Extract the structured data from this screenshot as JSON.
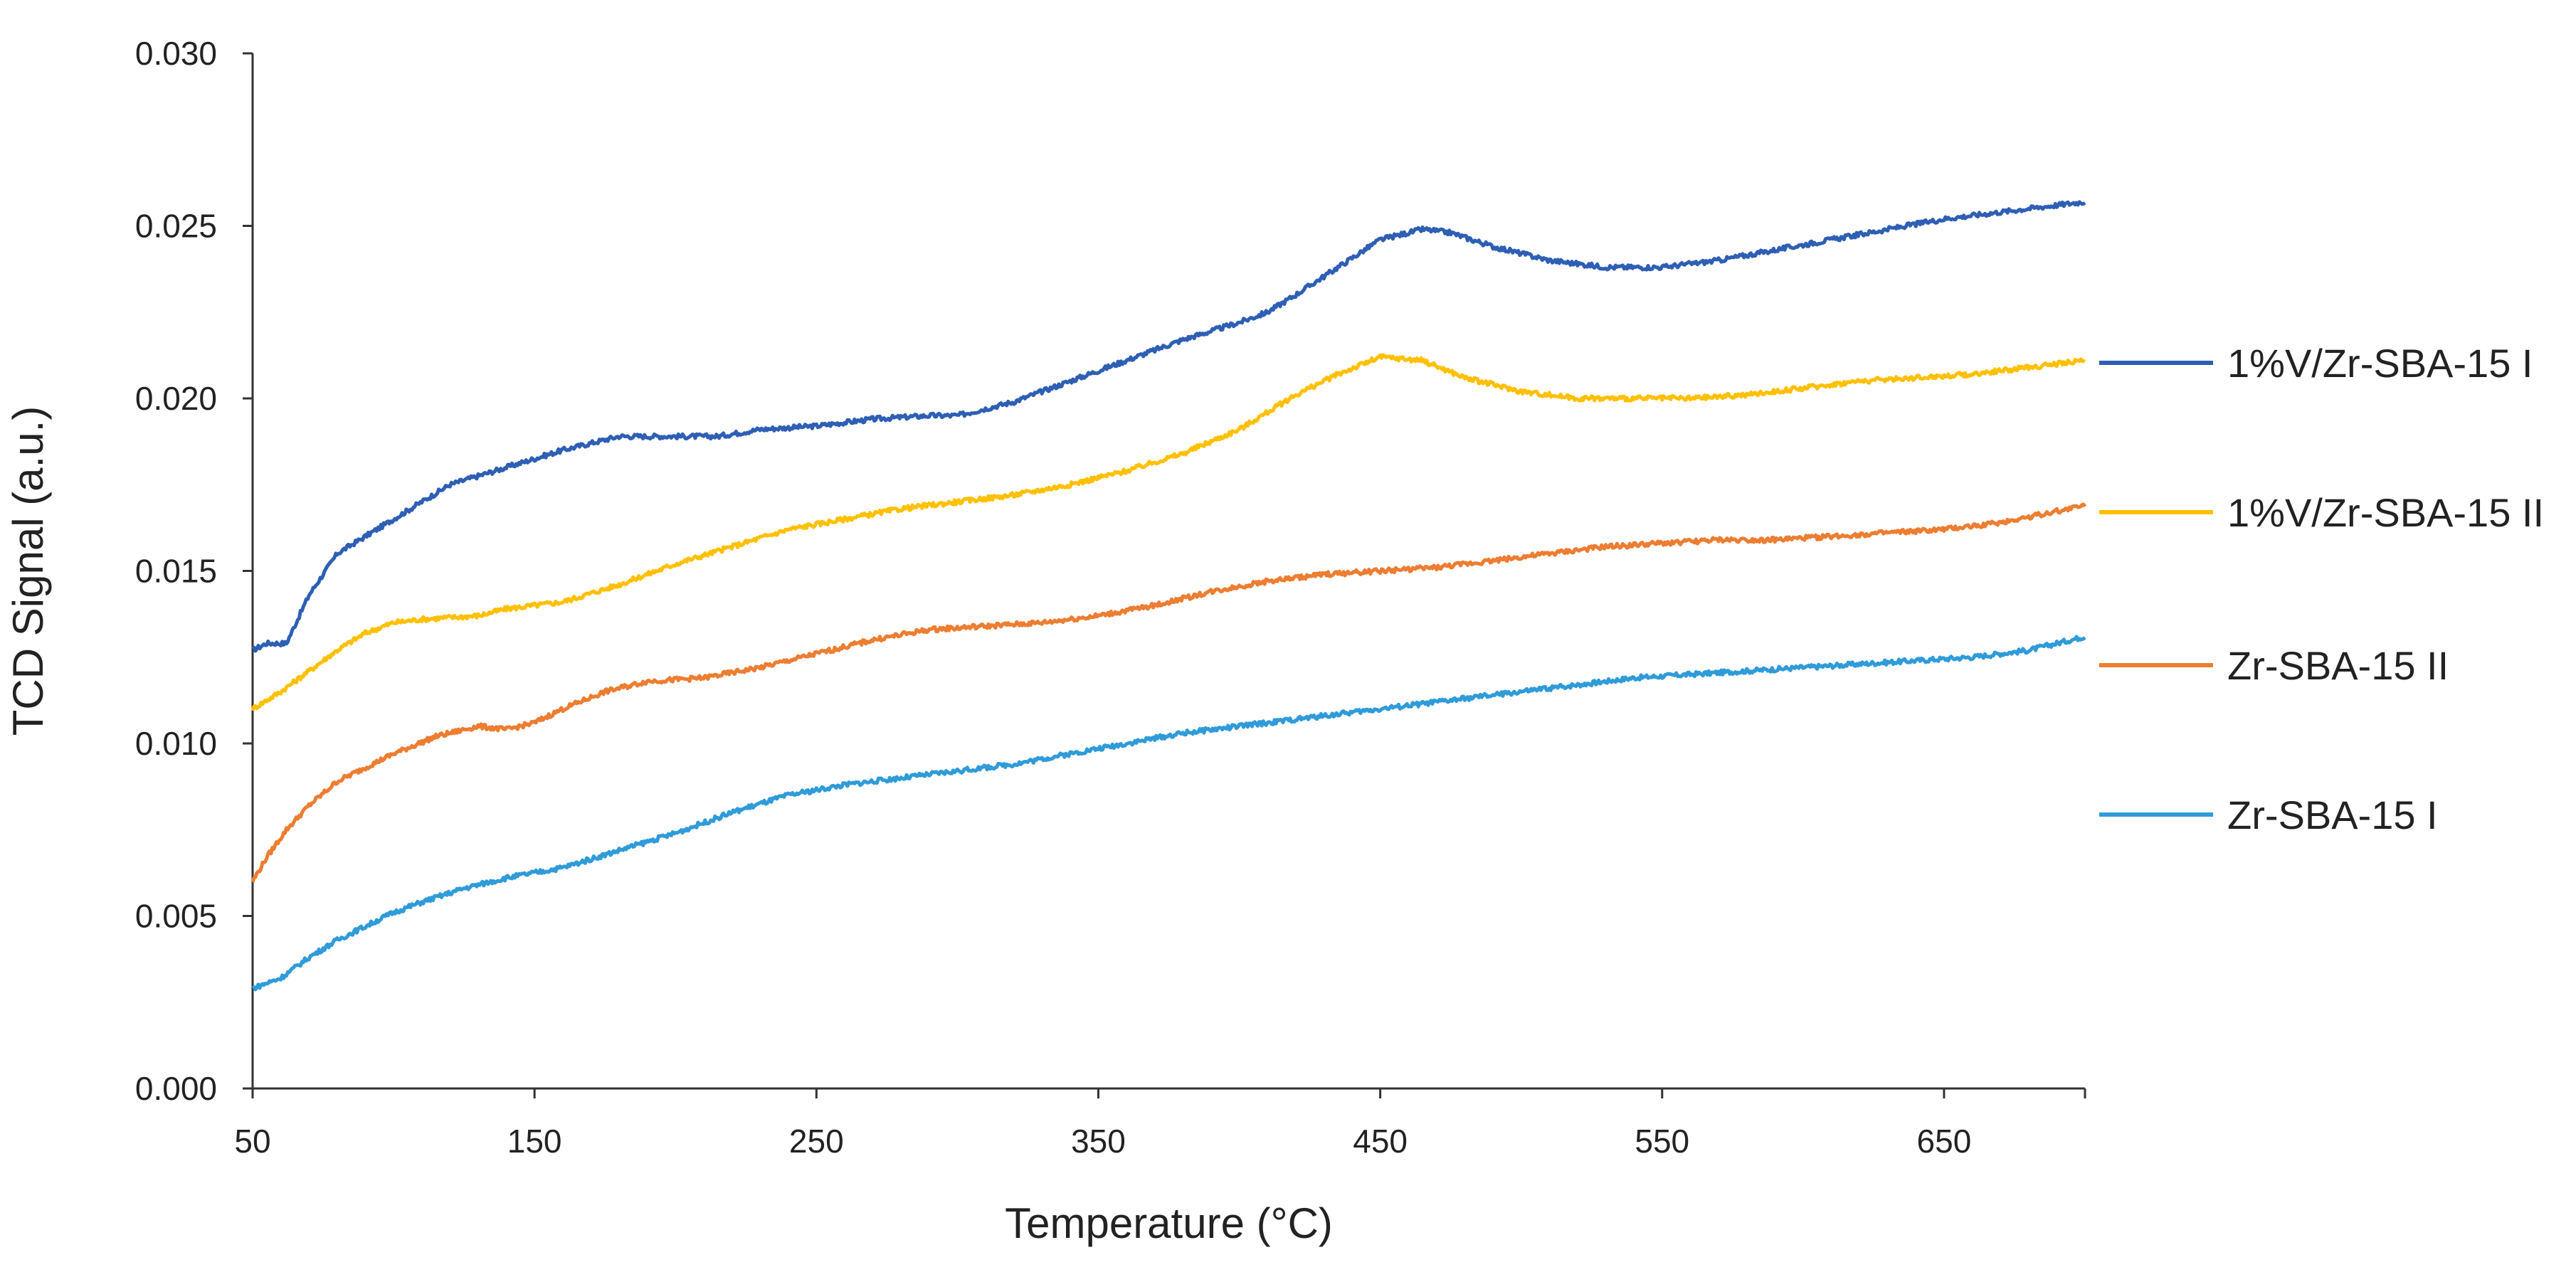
{
  "chart_data": {
    "type": "line",
    "title": "",
    "xlabel": "Temperature (°C)",
    "ylabel": "TCD Signal (a.u.)",
    "xlim": [
      50,
      700
    ],
    "ylim": [
      0,
      0.03
    ],
    "x_ticks": [
      50,
      150,
      250,
      350,
      450,
      550,
      650
    ],
    "x_tick_labels": [
      "50",
      "150",
      "250",
      "350",
      "450",
      "550",
      "650"
    ],
    "y_ticks": [
      0,
      0.005,
      0.01,
      0.015,
      0.02,
      0.025,
      0.03
    ],
    "y_tick_labels": [
      "0.000",
      "0.005",
      "0.010",
      "0.015",
      "0.020",
      "0.025",
      "0.030"
    ],
    "grid": false,
    "legend_position": "right",
    "series": [
      {
        "name": "1%V/Zr-SBA-15 I",
        "color": "#2E5FB5",
        "x": [
          50,
          55,
          62,
          70,
          80,
          90,
          100,
          120,
          140,
          160,
          180,
          200,
          215,
          230,
          250,
          270,
          290,
          300,
          320,
          340,
          360,
          380,
          400,
          410,
          420,
          435,
          450,
          465,
          475,
          490,
          510,
          530,
          550,
          570,
          590,
          610,
          630,
          650,
          670,
          700
        ],
        "y": [
          0.0127,
          0.0129,
          0.0129,
          0.0143,
          0.0155,
          0.016,
          0.0165,
          0.0175,
          0.018,
          0.0185,
          0.0189,
          0.0189,
          0.0189,
          0.0191,
          0.0192,
          0.0194,
          0.0195,
          0.0195,
          0.0199,
          0.0205,
          0.0211,
          0.0217,
          0.0222,
          0.0225,
          0.023,
          0.0238,
          0.0246,
          0.0249,
          0.0248,
          0.0244,
          0.024,
          0.0238,
          0.0238,
          0.024,
          0.0243,
          0.0246,
          0.0249,
          0.0252,
          0.0254,
          0.0257
        ]
      },
      {
        "name": "1%V/Zr-SBA-15 II",
        "color": "#FFC000",
        "x": [
          50,
          60,
          70,
          80,
          90,
          100,
          110,
          130,
          140,
          160,
          180,
          200,
          220,
          240,
          260,
          280,
          300,
          320,
          340,
          360,
          380,
          400,
          410,
          420,
          435,
          450,
          465,
          480,
          500,
          520,
          540,
          560,
          580,
          600,
          620,
          640,
          660,
          680,
          700
        ],
        "y": [
          0.011,
          0.0115,
          0.0121,
          0.0127,
          0.0132,
          0.0135,
          0.0136,
          0.0137,
          0.0139,
          0.0141,
          0.0146,
          0.0152,
          0.0157,
          0.0162,
          0.0165,
          0.0168,
          0.017,
          0.0172,
          0.0175,
          0.0179,
          0.0184,
          0.0191,
          0.0196,
          0.0201,
          0.0207,
          0.0212,
          0.0211,
          0.0206,
          0.0202,
          0.02,
          0.02,
          0.02,
          0.0201,
          0.0203,
          0.0205,
          0.0206,
          0.0207,
          0.0209,
          0.0211
        ]
      },
      {
        "name": "Zr-SBA-15 II",
        "color": "#ED7D31",
        "x": [
          50,
          55,
          62,
          70,
          80,
          90,
          100,
          115,
          130,
          140,
          150,
          160,
          175,
          190,
          210,
          230,
          250,
          270,
          290,
          310,
          330,
          350,
          370,
          390,
          410,
          430,
          450,
          470,
          490,
          510,
          530,
          550,
          570,
          590,
          610,
          630,
          650,
          670,
          700
        ],
        "y": [
          0.006,
          0.0067,
          0.0075,
          0.0082,
          0.0089,
          0.0093,
          0.0097,
          0.0102,
          0.0105,
          0.0104,
          0.0106,
          0.011,
          0.0115,
          0.0118,
          0.0119,
          0.0122,
          0.0126,
          0.013,
          0.0133,
          0.0134,
          0.0135,
          0.0137,
          0.014,
          0.0144,
          0.0147,
          0.0149,
          0.015,
          0.0151,
          0.0153,
          0.0155,
          0.0157,
          0.0158,
          0.0159,
          0.0159,
          0.016,
          0.0161,
          0.0162,
          0.0164,
          0.0169
        ]
      },
      {
        "name": "Zr-SBA-15 I",
        "color": "#2F9BD9",
        "x": [
          50,
          60,
          70,
          80,
          90,
          100,
          110,
          125,
          140,
          160,
          180,
          200,
          220,
          240,
          260,
          280,
          300,
          320,
          340,
          360,
          380,
          400,
          420,
          440,
          460,
          480,
          500,
          520,
          540,
          560,
          580,
          600,
          620,
          640,
          660,
          680,
          700
        ],
        "y": [
          0.0029,
          0.0032,
          0.0038,
          0.0043,
          0.0047,
          0.0051,
          0.0054,
          0.0058,
          0.0061,
          0.0064,
          0.0069,
          0.0074,
          0.008,
          0.0085,
          0.0088,
          0.009,
          0.0092,
          0.0094,
          0.0097,
          0.01,
          0.0103,
          0.0105,
          0.0107,
          0.0109,
          0.0111,
          0.0113,
          0.0115,
          0.0117,
          0.0119,
          0.012,
          0.0121,
          0.0122,
          0.0123,
          0.0124,
          0.0125,
          0.0127,
          0.0131
        ]
      }
    ]
  }
}
